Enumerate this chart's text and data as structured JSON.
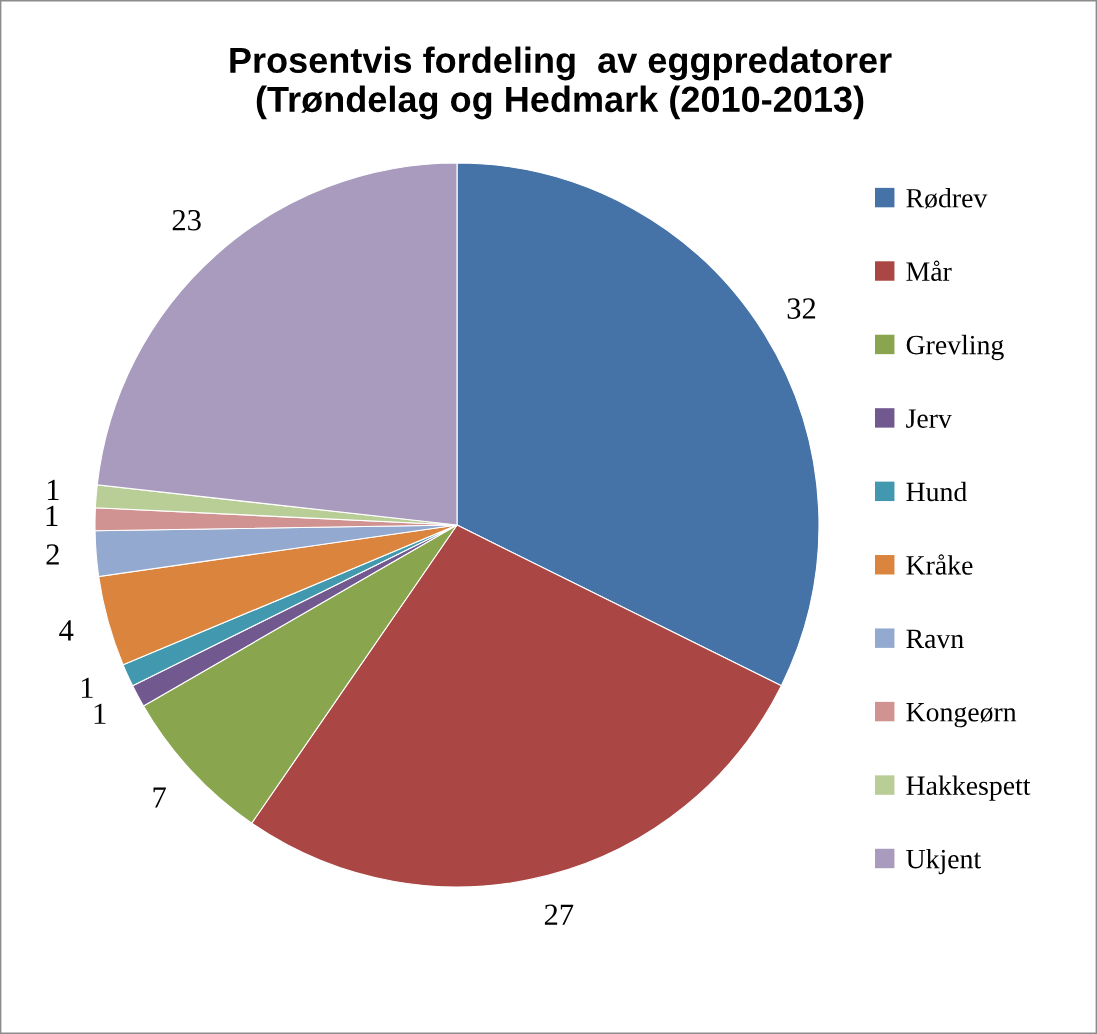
{
  "chart_data": {
    "type": "pie",
    "title": "Prosentvis fordeling  av eggpredatorer\n(Trøndelag og Hedmark (2010-2013)",
    "categories": [
      "Rødrev",
      "Mår",
      "Grevling",
      "Jerv",
      "Hund",
      "Kråke",
      "Ravn",
      "Kongeørn",
      "Hakkespett",
      "Ukjent"
    ],
    "values": [
      32,
      27,
      7,
      1,
      1,
      4,
      2,
      1,
      1,
      23
    ],
    "colors": [
      "#4572a7",
      "#aa4643",
      "#89a54e",
      "#71588f",
      "#4198af",
      "#db843d",
      "#93a9cf",
      "#d19392",
      "#b9cd96",
      "#a99bbd"
    ],
    "data_labels": true,
    "legend": "right"
  }
}
